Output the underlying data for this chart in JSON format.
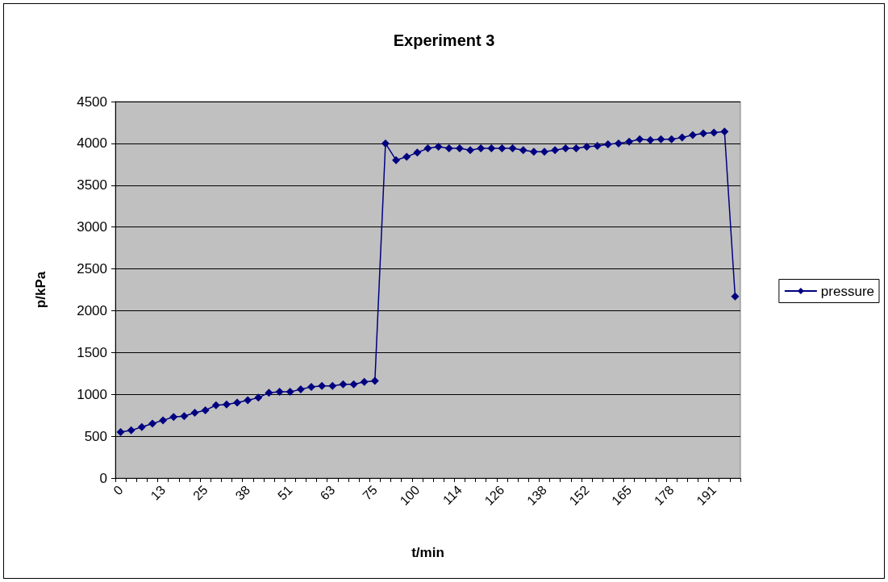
{
  "chart_data": {
    "type": "line",
    "title": "Experiment 3",
    "xlabel": "t/min",
    "ylabel": "p/kPa",
    "categories": [
      "0",
      null,
      null,
      null,
      "13",
      null,
      null,
      null,
      "25",
      null,
      null,
      null,
      "38",
      null,
      null,
      null,
      "51",
      null,
      null,
      null,
      "63",
      null,
      null,
      null,
      "75",
      null,
      null,
      null,
      "100",
      null,
      null,
      null,
      "114",
      null,
      null,
      null,
      "126",
      null,
      null,
      null,
      "138",
      null,
      null,
      null,
      "152",
      null,
      null,
      null,
      "165",
      null,
      null,
      null,
      "178",
      null,
      null,
      null,
      "191",
      null,
      null
    ],
    "series": [
      {
        "name": "pressure",
        "color": "#000080",
        "values": [
          550,
          570,
          610,
          650,
          690,
          730,
          740,
          780,
          810,
          870,
          880,
          900,
          930,
          960,
          1020,
          1030,
          1030,
          1060,
          1090,
          1100,
          1100,
          1120,
          1120,
          1150,
          1160,
          4000,
          3800,
          3840,
          3890,
          3940,
          3960,
          3940,
          3940,
          3920,
          3940,
          3940,
          3940,
          3940,
          3920,
          3900,
          3900,
          3920,
          3940,
          3940,
          3960,
          3970,
          3990,
          4000,
          4020,
          4050,
          4040,
          4050,
          4050,
          4070,
          4100,
          4120,
          4130,
          4140,
          2170
        ]
      }
    ],
    "ylim": [
      0,
      4500
    ],
    "yticks": [
      0,
      500,
      1000,
      1500,
      2000,
      2500,
      3000,
      3500,
      4000,
      4500
    ],
    "grid": "y",
    "legend": "right",
    "marker": "diamond",
    "line_style": "solid"
  }
}
